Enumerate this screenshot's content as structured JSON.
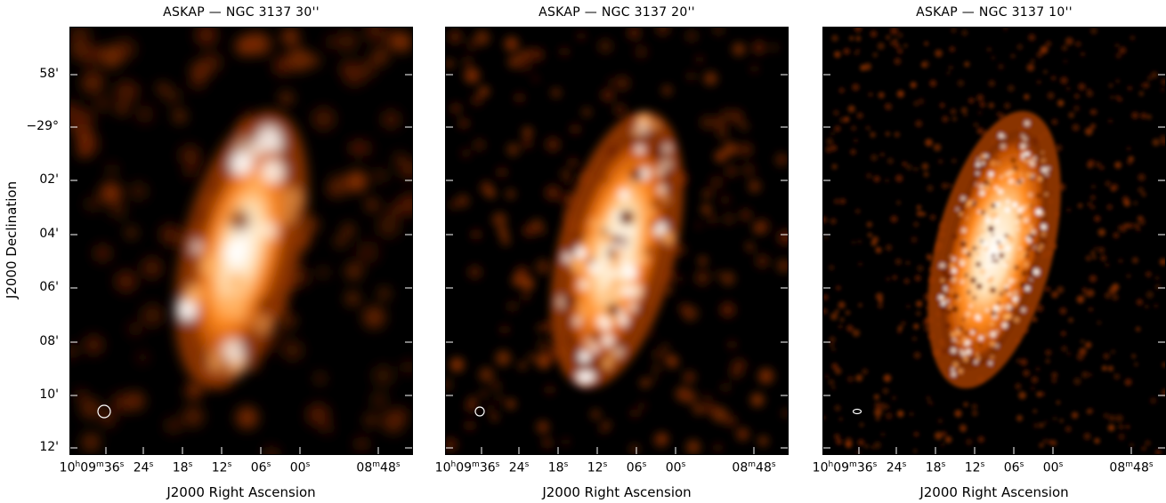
{
  "panels": [
    {
      "title": "ASKAP — NGC 3137 30''",
      "beam": "large-beam-ellipse"
    },
    {
      "title": "ASKAP — NGC 3137 20''",
      "beam": "medium-beam-ellipse"
    },
    {
      "title": "ASKAP — NGC 3137 10''",
      "beam": "small-beam-ellipse"
    }
  ],
  "x_axis": {
    "title": "J2000 Right Ascension",
    "ticks": [
      {
        "main": "10",
        "h": "h",
        "mid": "09",
        "m": "m",
        "end": "36",
        "s": "s"
      },
      {
        "main": "24",
        "s": "s"
      },
      {
        "main": "18",
        "s": "s"
      },
      {
        "main": "12",
        "s": "s"
      },
      {
        "main": "06",
        "s": "s"
      },
      {
        "main": "00",
        "s": "s"
      },
      {
        "main": "08",
        "m": "m",
        "end": "48",
        "s": "s"
      }
    ]
  },
  "y_axis": {
    "title": "J2000 Declination",
    "ticks": [
      "58'",
      "−29°",
      "02'",
      "04'",
      "06'",
      "08'",
      "10'",
      "12'"
    ]
  },
  "colors": {
    "background": "#000000",
    "colormap": [
      "#000000",
      "#5a1500",
      "#b84a00",
      "#ff8a1e",
      "#ffffff"
    ],
    "beam": "#ffffff"
  }
}
